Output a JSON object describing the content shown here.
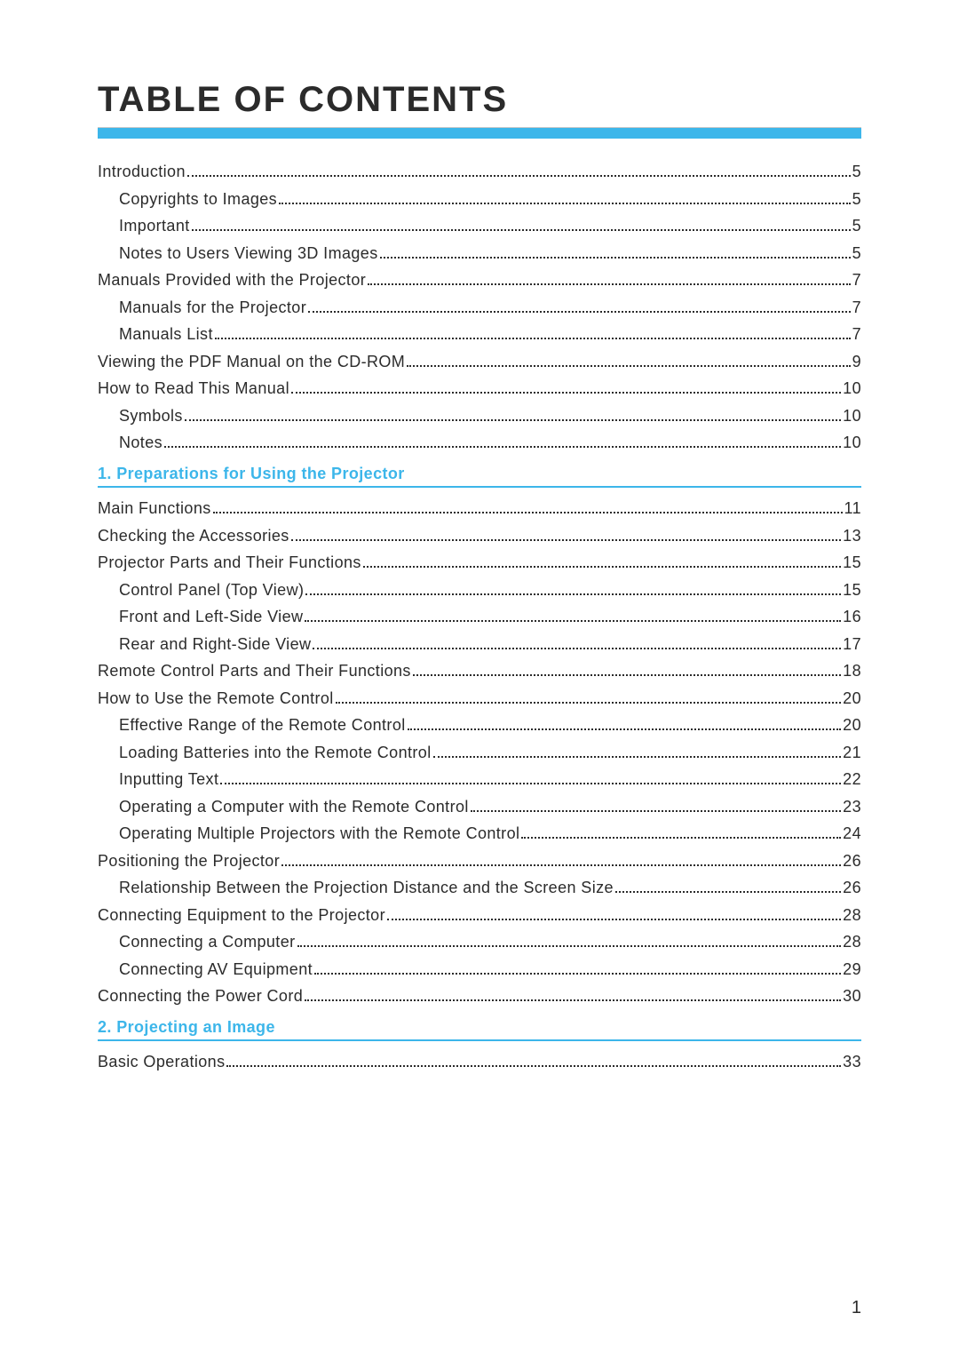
{
  "title": "TABLE OF CONTENTS",
  "colors": {
    "accent": "#3cb6ea",
    "text": "#2b2b2b",
    "rule_border": "#c8c8c8",
    "background": "#ffffff"
  },
  "typography": {
    "title_fontsize": 40,
    "entry_fontsize": 18,
    "letter_spacing": 0.4
  },
  "page_number": "1",
  "entries": [
    {
      "type": "entry",
      "level": 0,
      "label": "Introduction",
      "page": "5"
    },
    {
      "type": "entry",
      "level": 1,
      "label": "Copyrights to Images",
      "page": "5"
    },
    {
      "type": "entry",
      "level": 1,
      "label": "Important",
      "page": "5"
    },
    {
      "type": "entry",
      "level": 1,
      "label": "Notes to Users Viewing 3D Images",
      "page": "5"
    },
    {
      "type": "entry",
      "level": 0,
      "label": "Manuals Provided with the Projector",
      "page": "7"
    },
    {
      "type": "entry",
      "level": 1,
      "label": "Manuals for the Projector",
      "page": "7"
    },
    {
      "type": "entry",
      "level": 1,
      "label": "Manuals List",
      "page": "7"
    },
    {
      "type": "entry",
      "level": 0,
      "label": "Viewing the PDF Manual on the CD-ROM",
      "page": "9"
    },
    {
      "type": "entry",
      "level": 0,
      "label": "How to Read This Manual",
      "page": "10"
    },
    {
      "type": "entry",
      "level": 1,
      "label": "Symbols",
      "page": "10"
    },
    {
      "type": "entry",
      "level": 1,
      "label": "Notes",
      "page": "10"
    },
    {
      "type": "section",
      "label": "1. Preparations for Using the Projector"
    },
    {
      "type": "entry",
      "level": 0,
      "label": "Main Functions",
      "page": "11"
    },
    {
      "type": "entry",
      "level": 0,
      "label": "Checking the Accessories",
      "page": "13"
    },
    {
      "type": "entry",
      "level": 0,
      "label": "Projector Parts and Their Functions",
      "page": "15"
    },
    {
      "type": "entry",
      "level": 1,
      "label": "Control Panel (Top View)",
      "page": "15"
    },
    {
      "type": "entry",
      "level": 1,
      "label": "Front and Left-Side View",
      "page": "16"
    },
    {
      "type": "entry",
      "level": 1,
      "label": "Rear and Right-Side View",
      "page": "17"
    },
    {
      "type": "entry",
      "level": 0,
      "label": "Remote Control Parts and Their Functions",
      "page": "18"
    },
    {
      "type": "entry",
      "level": 0,
      "label": "How to Use the Remote Control",
      "page": "20"
    },
    {
      "type": "entry",
      "level": 1,
      "label": "Effective Range of the Remote Control",
      "page": "20"
    },
    {
      "type": "entry",
      "level": 1,
      "label": "Loading Batteries into the Remote Control",
      "page": "21"
    },
    {
      "type": "entry",
      "level": 1,
      "label": "Inputting Text",
      "page": "22"
    },
    {
      "type": "entry",
      "level": 1,
      "label": "Operating a Computer with the Remote Control",
      "page": "23"
    },
    {
      "type": "entry",
      "level": 1,
      "label": "Operating Multiple Projectors with the Remote Control",
      "page": "24"
    },
    {
      "type": "entry",
      "level": 0,
      "label": "Positioning the Projector",
      "page": "26"
    },
    {
      "type": "entry",
      "level": 1,
      "label": "Relationship Between the Projection Distance and the Screen Size",
      "page": "26"
    },
    {
      "type": "entry",
      "level": 0,
      "label": "Connecting Equipment to the Projector",
      "page": "28"
    },
    {
      "type": "entry",
      "level": 1,
      "label": "Connecting a Computer",
      "page": "28"
    },
    {
      "type": "entry",
      "level": 1,
      "label": "Connecting AV Equipment",
      "page": "29"
    },
    {
      "type": "entry",
      "level": 0,
      "label": "Connecting the Power Cord",
      "page": "30"
    },
    {
      "type": "section",
      "label": "2. Projecting an Image"
    },
    {
      "type": "entry",
      "level": 0,
      "label": "Basic Operations",
      "page": "33"
    }
  ]
}
